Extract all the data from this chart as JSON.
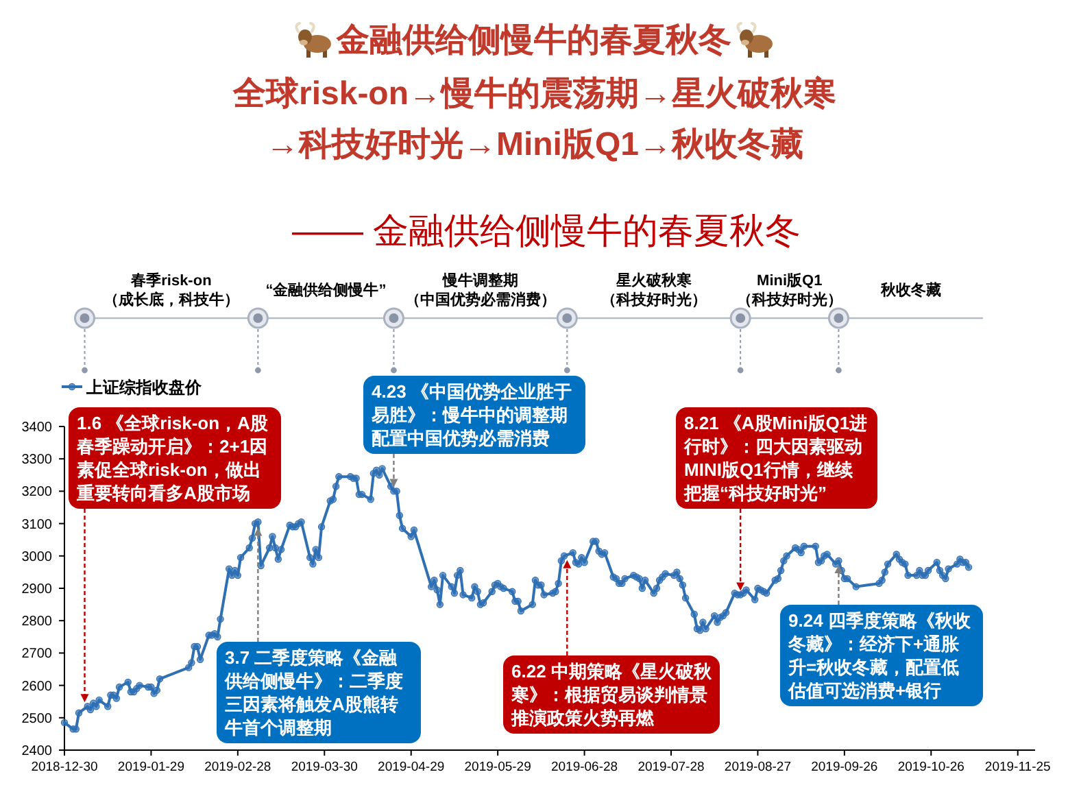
{
  "chart_data": {
    "type": "line",
    "title": "金融供给侧慢牛的春夏秋冬",
    "subtitle": "全球risk-on→慢牛的震荡期→星火破秋寒→科技好时光→Mini版Q1→秋收冬藏",
    "x": [
      "2018-12-30",
      "2019-01-02",
      "2019-01-03",
      "2019-01-04",
      "2019-01-07",
      "2019-01-08",
      "2019-01-09",
      "2019-01-10",
      "2019-01-11",
      "2019-01-14",
      "2019-01-15",
      "2019-01-16",
      "2019-01-17",
      "2019-01-18",
      "2019-01-21",
      "2019-01-22",
      "2019-01-23",
      "2019-01-24",
      "2019-01-25",
      "2019-01-28",
      "2019-01-29",
      "2019-01-30",
      "2019-01-31",
      "2019-02-01",
      "2019-02-11",
      "2019-02-12",
      "2019-02-13",
      "2019-02-14",
      "2019-02-15",
      "2019-02-18",
      "2019-02-19",
      "2019-02-20",
      "2019-02-21",
      "2019-02-22",
      "2019-02-25",
      "2019-02-26",
      "2019-02-27",
      "2019-02-28",
      "2019-03-01",
      "2019-03-04",
      "2019-03-05",
      "2019-03-06",
      "2019-03-07",
      "2019-03-08",
      "2019-03-11",
      "2019-03-12",
      "2019-03-13",
      "2019-03-14",
      "2019-03-15",
      "2019-03-18",
      "2019-03-19",
      "2019-03-20",
      "2019-03-21",
      "2019-03-22",
      "2019-03-25",
      "2019-03-26",
      "2019-03-27",
      "2019-03-28",
      "2019-03-29",
      "2019-04-01",
      "2019-04-02",
      "2019-04-03",
      "2019-04-04",
      "2019-04-08",
      "2019-04-09",
      "2019-04-10",
      "2019-04-11",
      "2019-04-12",
      "2019-04-15",
      "2019-04-16",
      "2019-04-17",
      "2019-04-18",
      "2019-04-19",
      "2019-04-22",
      "2019-04-23",
      "2019-04-24",
      "2019-04-25",
      "2019-04-26",
      "2019-04-29",
      "2019-04-30",
      "2019-05-06",
      "2019-05-07",
      "2019-05-08",
      "2019-05-09",
      "2019-05-10",
      "2019-05-13",
      "2019-05-14",
      "2019-05-15",
      "2019-05-16",
      "2019-05-17",
      "2019-05-20",
      "2019-05-21",
      "2019-05-22",
      "2019-05-23",
      "2019-05-24",
      "2019-05-27",
      "2019-05-28",
      "2019-05-29",
      "2019-05-30",
      "2019-05-31",
      "2019-06-03",
      "2019-06-04",
      "2019-06-05",
      "2019-06-06",
      "2019-06-10",
      "2019-06-11",
      "2019-06-12",
      "2019-06-13",
      "2019-06-14",
      "2019-06-17",
      "2019-06-18",
      "2019-06-19",
      "2019-06-20",
      "2019-06-21",
      "2019-06-24",
      "2019-06-25",
      "2019-06-26",
      "2019-06-27",
      "2019-06-28",
      "2019-07-01",
      "2019-07-02",
      "2019-07-03",
      "2019-07-04",
      "2019-07-05",
      "2019-07-08",
      "2019-07-09",
      "2019-07-10",
      "2019-07-11",
      "2019-07-12",
      "2019-07-15",
      "2019-07-16",
      "2019-07-17",
      "2019-07-18",
      "2019-07-19",
      "2019-07-22",
      "2019-07-23",
      "2019-07-24",
      "2019-07-25",
      "2019-07-26",
      "2019-07-29",
      "2019-07-30",
      "2019-07-31",
      "2019-08-01",
      "2019-08-02",
      "2019-08-05",
      "2019-08-06",
      "2019-08-07",
      "2019-08-08",
      "2019-08-09",
      "2019-08-12",
      "2019-08-13",
      "2019-08-14",
      "2019-08-15",
      "2019-08-16",
      "2019-08-19",
      "2019-08-20",
      "2019-08-21",
      "2019-08-22",
      "2019-08-23",
      "2019-08-26",
      "2019-08-27",
      "2019-08-28",
      "2019-08-29",
      "2019-08-30",
      "2019-09-02",
      "2019-09-03",
      "2019-09-04",
      "2019-09-05",
      "2019-09-06",
      "2019-09-09",
      "2019-09-10",
      "2019-09-11",
      "2019-09-12",
      "2019-09-16",
      "2019-09-17",
      "2019-09-18",
      "2019-09-19",
      "2019-09-20",
      "2019-09-23",
      "2019-09-24",
      "2019-09-25",
      "2019-09-26",
      "2019-09-27",
      "2019-09-30",
      "2019-10-08",
      "2019-10-09",
      "2019-10-10",
      "2019-10-11",
      "2019-10-14",
      "2019-10-15",
      "2019-10-16",
      "2019-10-17",
      "2019-10-18",
      "2019-10-21",
      "2019-10-22",
      "2019-10-23",
      "2019-10-24",
      "2019-10-25",
      "2019-10-28",
      "2019-10-29",
      "2019-10-30",
      "2019-10-31",
      "2019-11-01",
      "2019-11-04",
      "2019-11-05",
      "2019-11-06",
      "2019-11-07",
      "2019-11-08"
    ],
    "series": [
      {
        "name": "上证综指收盘价",
        "color": "#2f6fb3",
        "values": [
          2485,
          2465,
          2465,
          2515,
          2535,
          2525,
          2545,
          2535,
          2555,
          2535,
          2570,
          2570,
          2560,
          2595,
          2610,
          2580,
          2580,
          2590,
          2600,
          2595,
          2595,
          2575,
          2585,
          2620,
          2655,
          2670,
          2720,
          2720,
          2680,
          2755,
          2755,
          2760,
          2750,
          2805,
          2960,
          2940,
          2955,
          2940,
          2995,
          3025,
          3055,
          3100,
          3105,
          2970,
          3025,
          3060,
          3025,
          2990,
          3020,
          3095,
          3090,
          3090,
          3100,
          3105,
          2995,
          2975,
          3020,
          2995,
          3090,
          3170,
          3175,
          3215,
          3245,
          3245,
          3240,
          3240,
          3190,
          3190,
          3175,
          3255,
          3265,
          3250,
          3270,
          3215,
          3200,
          3200,
          3125,
          3085,
          3060,
          3080,
          2905,
          2925,
          2895,
          2850,
          2940,
          2905,
          2885,
          2940,
          2955,
          2880,
          2870,
          2905,
          2890,
          2850,
          2855,
          2890,
          2910,
          2915,
          2905,
          2900,
          2890,
          2860,
          2860,
          2830,
          2850,
          2925,
          2910,
          2910,
          2880,
          2885,
          2890,
          2915,
          2985,
          3000,
          3010,
          2980,
          2975,
          2995,
          2980,
          3045,
          3045,
          3015,
          3005,
          3010,
          2935,
          2930,
          2915,
          2915,
          2930,
          2940,
          2935,
          2930,
          2900,
          2925,
          2885,
          2900,
          2925,
          2935,
          2945,
          2940,
          2950,
          2930,
          2910,
          2870,
          2820,
          2775,
          2770,
          2795,
          2775,
          2815,
          2795,
          2810,
          2815,
          2825,
          2885,
          2880,
          2880,
          2885,
          2895,
          2865,
          2900,
          2895,
          2890,
          2885,
          2925,
          2930,
          2955,
          2985,
          3000,
          3025,
          3020,
          3010,
          3030,
          3030,
          2980,
          2985,
          3000,
          3005,
          2975,
          2985,
          2955,
          2930,
          2930,
          2905,
          2915,
          2925,
          2950,
          2975,
          3005,
          2990,
          2980,
          2975,
          2940,
          2940,
          2955,
          2940,
          2940,
          2955,
          2980,
          2955,
          2940,
          2930,
          2960,
          2975,
          2990,
          2980,
          2980,
          2965
        ]
      }
    ],
    "xlim": [
      "2018-12-30",
      "2019-12-01"
    ],
    "xticks": [
      "2018-12-30",
      "2019-01-29",
      "2019-02-28",
      "2019-03-30",
      "2019-04-29",
      "2019-05-29",
      "2019-06-28",
      "2019-07-28",
      "2019-08-27",
      "2019-09-26",
      "2019-10-26",
      "2019-11-25"
    ],
    "ylim": [
      2400,
      3400
    ],
    "yticks": [
      2400,
      2500,
      2600,
      2700,
      2800,
      2900,
      3000,
      3100,
      3200,
      3300,
      3400
    ],
    "legend": "top left",
    "marker": "circle",
    "line_style": "solid",
    "annotations": [
      "—— 金融供给侧慢牛的春夏秋冬",
      "春季risk-on（成长底，科技牛）",
      "“金融供给侧慢牛”",
      "慢牛调整期（中国优势必需消费）",
      "星火破秋寒（科技好时光）",
      "Mini版Q1（科技好时光）",
      "秋收冬藏",
      {
        "text": "1.6 《全球risk-on，A股春季躁动开启》：2+1因素促全球risk-on，做出重要转向看多A股市场",
        "x": "2019-01-06",
        "y": 2535
      },
      {
        "text": "3.7 二季度策略《金融供给侧慢牛》：二季度三因素将触发A股熊转牛首个调整期",
        "x": "2019-03-07",
        "y": 3100
      },
      {
        "text": "4.23 《中国优势企业胜于易胜》：慢牛中的调整期配置中国优势必需消费",
        "x": "2019-04-23",
        "y": 3200
      },
      {
        "text": "6.22 中期策略《星火破秋寒》：根据贸易谈判情景推演政策火势再燃",
        "x": "2019-06-22",
        "y": 3000
      },
      {
        "text": "8.21 《A股Mini版Q1进行时》：四大因素驱动MINI版Q1行情，继续把握“科技好时光”",
        "x": "2019-08-21",
        "y": 2880
      },
      {
        "text": "9.24 四季度策略《秋收冬藏》：经济下+通胀升=秋收冬藏，配置低估值可选消费+银行",
        "x": "2019-09-24",
        "y": 2985
      }
    ]
  }
}
